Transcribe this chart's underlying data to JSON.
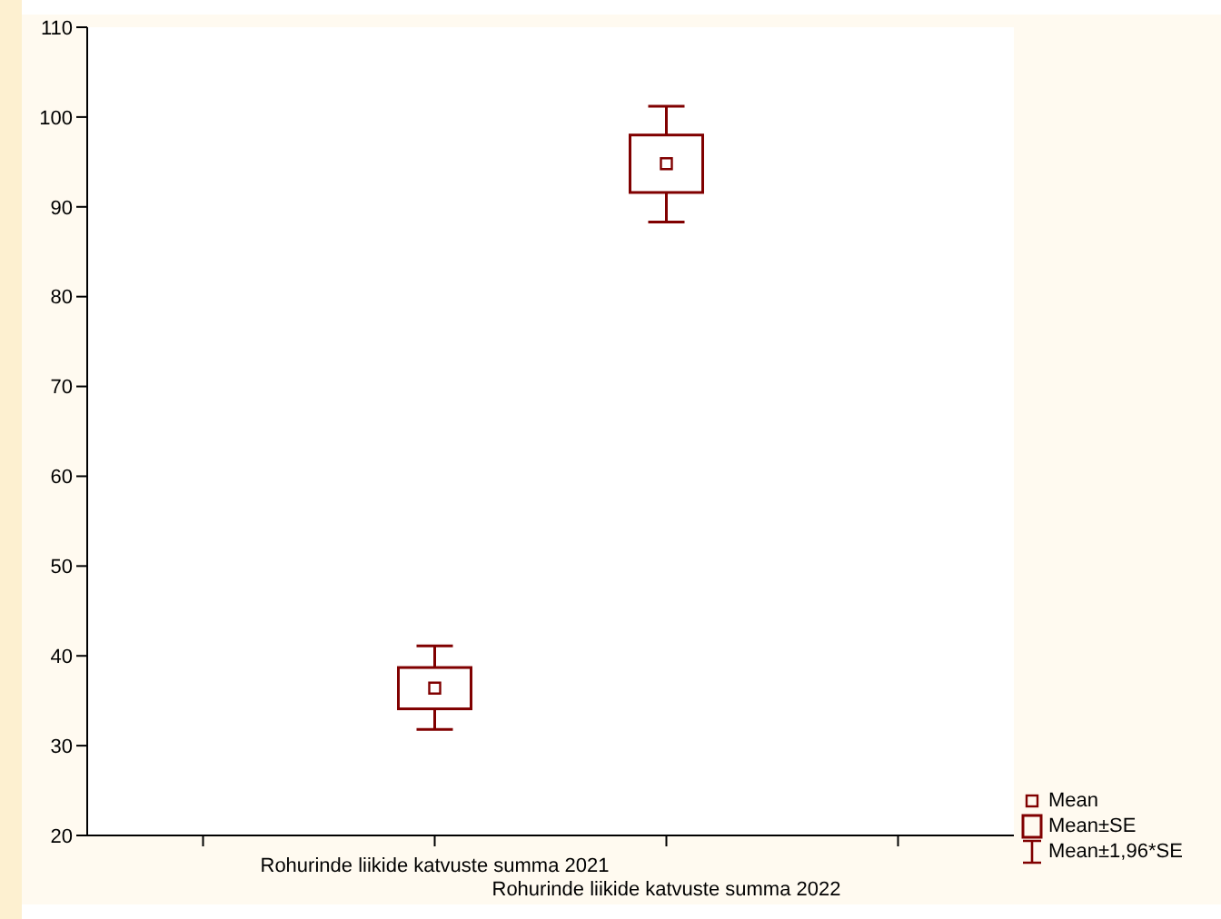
{
  "chart_data": {
    "type": "box",
    "categories": [
      null,
      "Rohurinde liikide katvuste summa 2021",
      "Rohurinde liikide katvuste summa 2022",
      null
    ],
    "series": [
      {
        "color": "#800000",
        "boxes": [
          null,
          {
            "low": 31.8,
            "q1": 34.1,
            "median": null,
            "q3": 38.7,
            "high": 41.1,
            "mean": 36.4
          },
          {
            "low": 88.3,
            "q1": 91.6,
            "median": null,
            "q3": 98.0,
            "high": 101.2,
            "mean": 94.8
          },
          null
        ]
      }
    ],
    "ylim": [
      20,
      110
    ],
    "yticks": [
      20,
      30,
      40,
      50,
      60,
      70,
      80,
      90,
      100,
      110
    ],
    "grid": false,
    "annotations": [
      "Mean",
      "Mean±SE",
      "Mean±1,96*SE"
    ]
  }
}
